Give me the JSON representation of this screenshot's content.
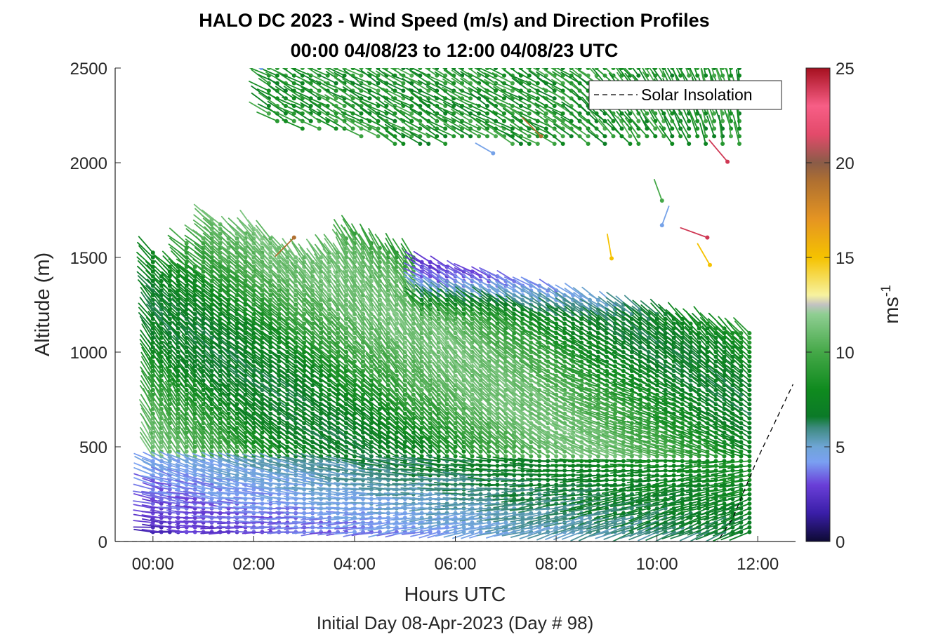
{
  "chart_data": {
    "type": "wind-barb-profile",
    "title_line1": "HALO DC 2023 - Wind Speed (m/s) and Direction Profiles",
    "title_line2": "00:00 04/08/23 to 12:00 04/08/23  UTC",
    "xlabel": "Hours UTC",
    "x_sublabel": "Initial Day 08-Apr-2023 (Day # 98)",
    "ylabel": "Altitude (m)",
    "xlim": [
      -0.75,
      12.75
    ],
    "ylim": [
      0,
      2500
    ],
    "xticks": [
      0,
      2,
      4,
      6,
      8,
      10,
      12
    ],
    "xtick_labels": [
      "00:00",
      "02:00",
      "04:00",
      "06:00",
      "08:00",
      "10:00",
      "12:00"
    ],
    "yticks": [
      0,
      500,
      1000,
      1500,
      2000,
      2500
    ],
    "ytick_labels": [
      "0",
      "500",
      "1000",
      "1500",
      "2000",
      "2500"
    ],
    "legend": {
      "entry": "Solar Insolation",
      "position": "top-right"
    },
    "colorbar": {
      "label_base": "ms",
      "label_exp": "-1",
      "range": [
        0,
        25
      ],
      "ticks": [
        0,
        5,
        10,
        15,
        20,
        25
      ],
      "tick_labels": [
        "0",
        "5",
        "10",
        "15",
        "20",
        "25"
      ],
      "stops": [
        {
          "v": 0,
          "c": "#0d0a33"
        },
        {
          "v": 1.5,
          "c": "#3a1ea8"
        },
        {
          "v": 3,
          "c": "#6a3fd8"
        },
        {
          "v": 4.2,
          "c": "#7aa0f2"
        },
        {
          "v": 5,
          "c": "#6fa5d6"
        },
        {
          "v": 6,
          "c": "#3e8a80"
        },
        {
          "v": 6.6,
          "c": "#0b7a28"
        },
        {
          "v": 8,
          "c": "#0f8a1e"
        },
        {
          "v": 10,
          "c": "#45a848"
        },
        {
          "v": 12,
          "c": "#8fce92"
        },
        {
          "v": 12.5,
          "c": "#c2c2c2"
        },
        {
          "v": 13,
          "c": "#f7f2a0"
        },
        {
          "v": 15,
          "c": "#f5c200"
        },
        {
          "v": 17,
          "c": "#e59522"
        },
        {
          "v": 19,
          "c": "#b07030"
        },
        {
          "v": 20,
          "c": "#8a5c48"
        },
        {
          "v": 21.5,
          "c": "#e34a6a"
        },
        {
          "v": 23,
          "c": "#f75e86"
        },
        {
          "v": 25,
          "c": "#a6101f"
        }
      ]
    },
    "profiles": {
      "time_start": 0,
      "time_step": 0.1667,
      "count": 72,
      "altitude_min": 50,
      "altitude_step": 25,
      "lower_layer_top": [
        1540,
        1420,
        1460,
        1470,
        1580,
        1470,
        1600,
        1720,
        1690,
        1620,
        1630,
        1630,
        1650,
        1620,
        1600,
        1570,
        1540,
        1510,
        1500,
        1480,
        1500,
        1540,
        1530,
        1620,
        1640,
        1590,
        1590,
        1570,
        1530,
        1530,
        1510,
        1500,
        1490,
        1480,
        1460,
        1450,
        1440,
        1440,
        1430,
        1420,
        1410,
        1400,
        1390,
        1380,
        1370,
        1360,
        1350,
        1340,
        1330,
        1320,
        1310,
        1300,
        1290,
        1280,
        1270,
        1260,
        1250,
        1240,
        1230,
        1220,
        1210,
        1200,
        1190,
        1180,
        1170,
        1160,
        1150,
        1140,
        1130,
        1120,
        1110,
        1100
      ],
      "upper_layer": {
        "time_start": 2.3,
        "time_end": 11.8,
        "altitude_bottom": 2100,
        "altitude_top": 2500
      },
      "wind_speed_ms": {
        "surface_early": 2.0,
        "surface_late": 6.5,
        "mid_layer": 9.0,
        "jet_max_hours_6_10": 3.0,
        "upper_layer": 8.5
      },
      "wind_direction_deg": {
        "lower_early": 270,
        "lower_late": 240,
        "mid_layer": 320,
        "upper_layer": 300
      },
      "isolated_barbs": [
        {
          "t": 2.8,
          "z": 1605,
          "speed": 19,
          "dir": 225
        },
        {
          "t": 7.7,
          "z": 2140,
          "speed": 19,
          "dir": 315
        },
        {
          "t": 9.1,
          "z": 1495,
          "speed": 15,
          "dir": 350
        },
        {
          "t": 11.05,
          "z": 1460,
          "speed": 15,
          "dir": 330
        },
        {
          "t": 11.0,
          "z": 1605,
          "speed": 24,
          "dir": 290
        },
        {
          "t": 11.4,
          "z": 2005,
          "speed": 24,
          "dir": 320
        },
        {
          "t": 10.1,
          "z": 1800,
          "speed": 10,
          "dir": 340
        },
        {
          "t": 10.1,
          "z": 1670,
          "speed": 4.5,
          "dir": 20
        },
        {
          "t": 6.75,
          "z": 2050,
          "speed": 4.5,
          "dir": 300
        },
        {
          "t": 2.15,
          "z": 2500,
          "speed": 4.5,
          "dir": 290
        }
      ]
    },
    "solar_insolation": {
      "points": [
        [
          -0.75,
          0
        ],
        [
          11.2,
          0
        ],
        [
          11.5,
          120
        ],
        [
          12.0,
          440
        ],
        [
          12.7,
          830
        ]
      ]
    }
  }
}
